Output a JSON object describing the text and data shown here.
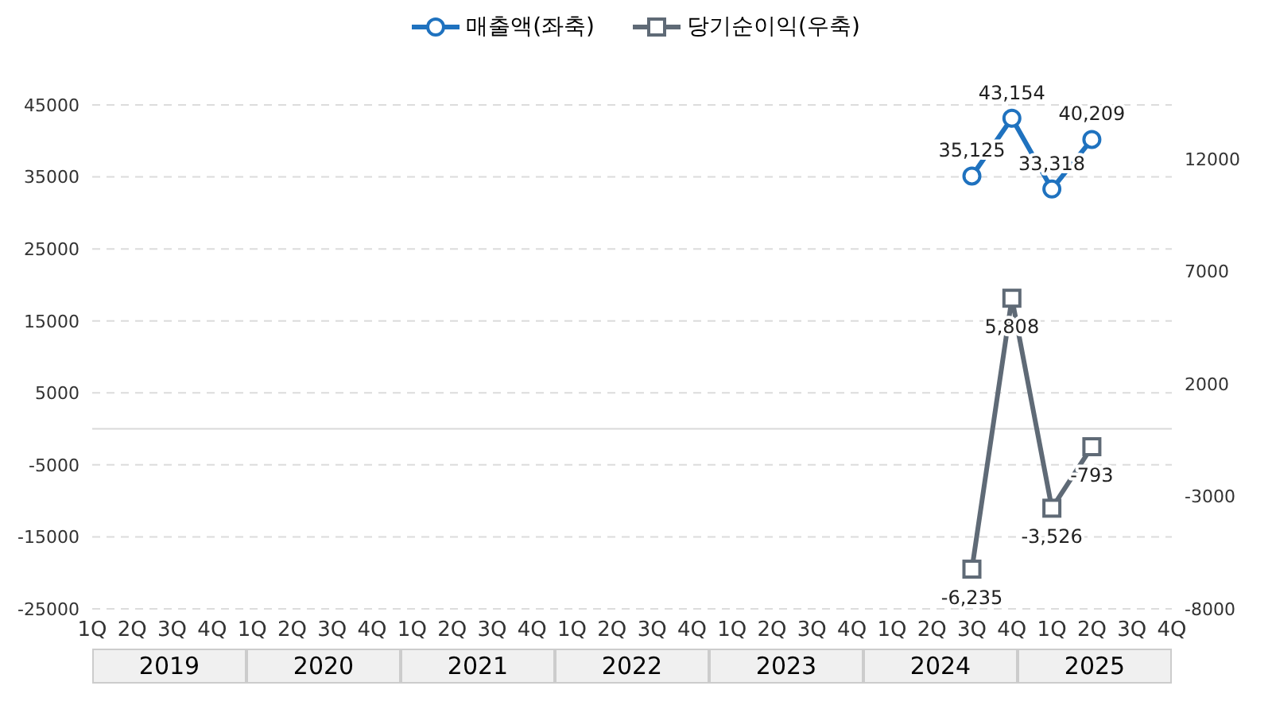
{
  "chart_data": {
    "type": "line",
    "categories": [
      "1Q",
      "2Q",
      "3Q",
      "4Q",
      "1Q",
      "2Q",
      "3Q",
      "4Q",
      "1Q",
      "2Q",
      "3Q",
      "4Q",
      "1Q",
      "2Q",
      "3Q",
      "4Q",
      "1Q",
      "2Q",
      "3Q",
      "4Q",
      "1Q",
      "2Q",
      "3Q",
      "4Q",
      "1Q",
      "2Q",
      "3Q",
      "4Q"
    ],
    "series": [
      {
        "name": "매출액(좌축)",
        "color": "#1f72bf",
        "marker": "circle",
        "values": [
          null,
          null,
          null,
          null,
          null,
          null,
          null,
          null,
          null,
          null,
          null,
          null,
          null,
          null,
          null,
          null,
          null,
          null,
          null,
          null,
          null,
          null,
          35125,
          43154,
          33318,
          40209,
          null,
          null
        ],
        "value_labels": [
          null,
          null,
          null,
          null,
          null,
          null,
          null,
          null,
          null,
          null,
          null,
          null,
          null,
          null,
          null,
          null,
          null,
          null,
          null,
          null,
          null,
          null,
          "35,125",
          "43,154",
          "33,318",
          "40,209",
          null,
          null
        ]
      },
      {
        "name": "당기순이익(우축)",
        "color": "#5f6a76",
        "marker": "square",
        "axis": "y2",
        "values": [
          null,
          null,
          null,
          null,
          null,
          null,
          null,
          null,
          null,
          null,
          null,
          null,
          null,
          null,
          null,
          null,
          null,
          null,
          null,
          null,
          null,
          null,
          -6235,
          5808,
          -3526,
          -793,
          null,
          null
        ],
        "value_labels": [
          null,
          null,
          null,
          null,
          null,
          null,
          null,
          null,
          null,
          null,
          null,
          null,
          null,
          null,
          null,
          null,
          null,
          null,
          null,
          null,
          null,
          null,
          "-6,235",
          "5,808",
          "-3,526",
          "-793",
          null,
          null
        ]
      }
    ],
    "ylim": [
      -25000,
      45000
    ],
    "yticks": [
      -25000,
      -15000,
      -5000,
      5000,
      15000,
      25000,
      35000,
      45000
    ],
    "y2lim": [
      -8000,
      14400
    ],
    "y2ticks": [
      -8000,
      -3000,
      2000,
      7000,
      12000
    ],
    "ref_lines": [
      {
        "axis": "y",
        "value": 0,
        "color": "#d9d9d9"
      }
    ],
    "annotations": [
      "2019",
      "2020",
      "2021",
      "2022",
      "2023",
      "2024",
      "2025"
    ],
    "grid": "y",
    "legend": "top",
    "line_style": "solid"
  }
}
